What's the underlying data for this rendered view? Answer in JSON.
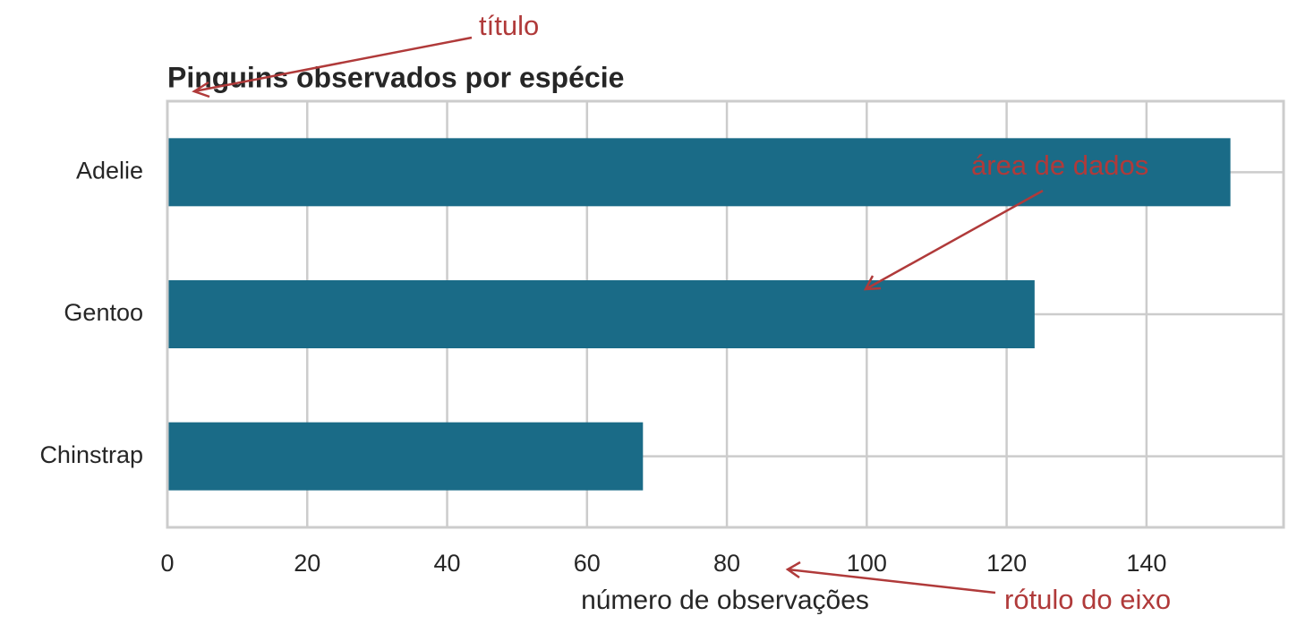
{
  "chart_data": {
    "type": "barh",
    "title": "Pinguins observados por espécie",
    "x_label": "número de observações",
    "categories": [
      "Adelie",
      "Gentoo",
      "Chinstrap"
    ],
    "values": [
      152,
      124,
      68
    ],
    "color": "#1a6b87",
    "xlim": [
      0,
      159.6
    ],
    "xticks": [
      0,
      20,
      40,
      60,
      80,
      100,
      120,
      140
    ],
    "grid": true,
    "annotations": [
      "título",
      "área de dados",
      "rótulo do eixo"
    ]
  }
}
